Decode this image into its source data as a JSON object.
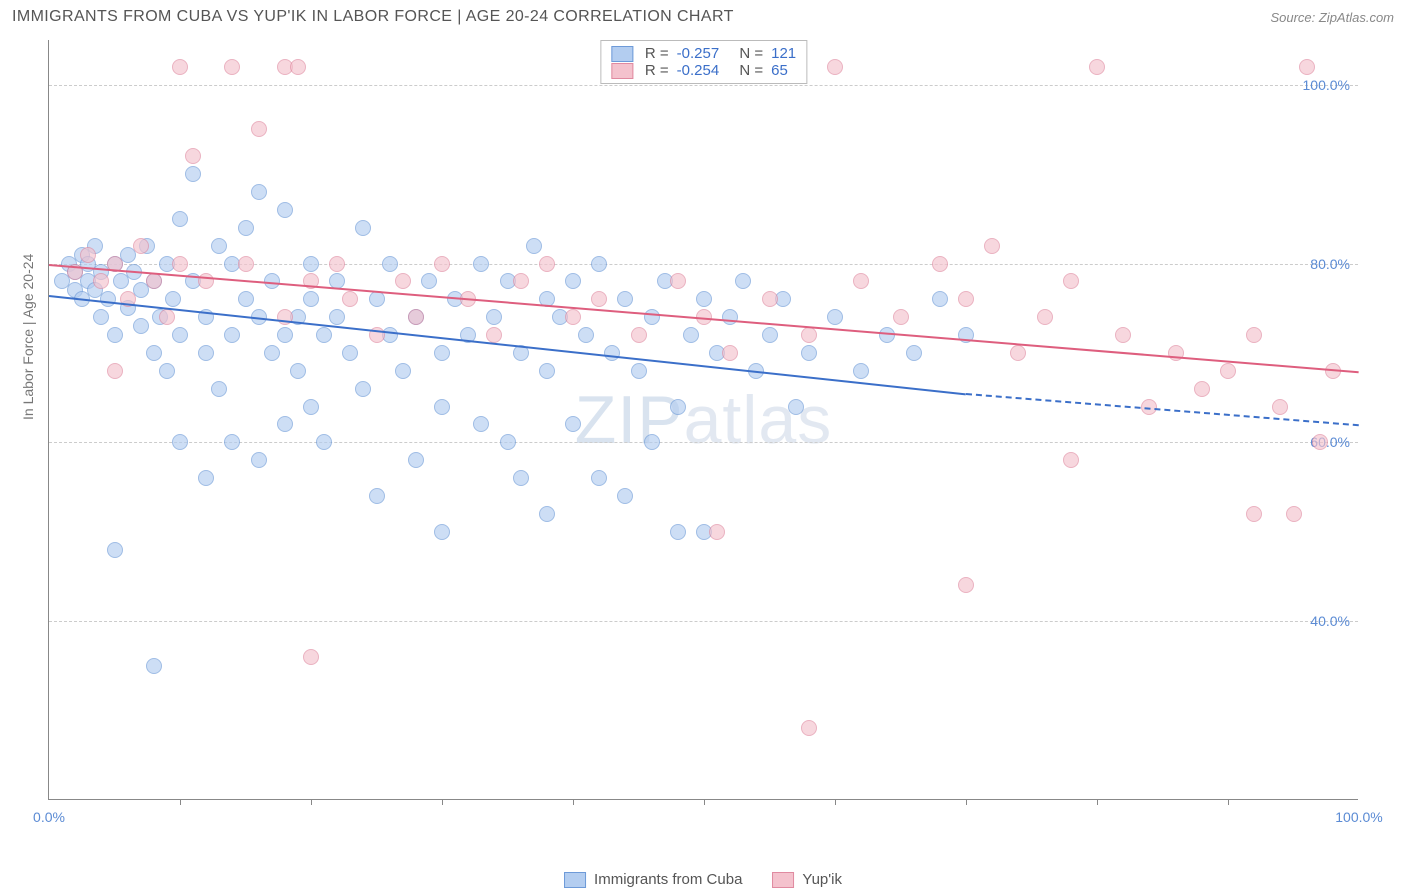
{
  "title": "IMMIGRANTS FROM CUBA VS YUP'IK IN LABOR FORCE | AGE 20-24 CORRELATION CHART",
  "source": "Source: ZipAtlas.com",
  "watermark": {
    "a": "ZIP",
    "b": "atlas"
  },
  "chart": {
    "type": "scatter",
    "ylabel": "In Labor Force | Age 20-24",
    "background_color": "#ffffff",
    "grid_color": "#cccccc",
    "axis_color": "#888888",
    "text_color": "#777777",
    "tick_label_color": "#5b8bd4",
    "point_radius": 8,
    "point_opacity": 0.65,
    "xlim": [
      0,
      100
    ],
    "ylim": [
      20,
      105
    ],
    "yticks": [
      {
        "v": 40,
        "label": "40.0%"
      },
      {
        "v": 60,
        "label": "60.0%"
      },
      {
        "v": 80,
        "label": "80.0%"
      },
      {
        "v": 100,
        "label": "100.0%"
      }
    ],
    "xticks_minor": [
      10,
      20,
      30,
      40,
      50,
      60,
      70,
      80,
      90
    ],
    "xtick_labels": [
      {
        "v": 0,
        "label": "0.0%"
      },
      {
        "v": 100,
        "label": "100.0%"
      }
    ],
    "legend_bottom": [
      {
        "label": "Immigrants from Cuba",
        "fill": "#b3cdf0",
        "stroke": "#6d9ad8"
      },
      {
        "label": "Yup'ik",
        "fill": "#f4c2cd",
        "stroke": "#e08aa0"
      }
    ],
    "legend_top": [
      {
        "fill": "#b3cdf0",
        "stroke": "#6d9ad8",
        "r_label": "R =",
        "r": "-0.257",
        "n_label": "N =",
        "n": "121"
      },
      {
        "fill": "#f4c2cd",
        "stroke": "#e08aa0",
        "r_label": "R =",
        "r": "-0.254",
        "n_label": "N =",
        "n": "65"
      }
    ],
    "series": [
      {
        "name": "Immigrants from Cuba",
        "fill": "#b3cdf0",
        "stroke": "#6d9ad8",
        "trend": {
          "x0": 0,
          "y0": 76.5,
          "x1": 70,
          "y1": 65.5,
          "color": "#3b6fc9",
          "width": 2,
          "dash_extend_to": 100,
          "dash_y": 62
        },
        "points": [
          [
            1,
            78
          ],
          [
            1.5,
            80
          ],
          [
            2,
            77
          ],
          [
            2,
            79
          ],
          [
            2.5,
            76
          ],
          [
            2.5,
            81
          ],
          [
            3,
            78
          ],
          [
            3,
            80
          ],
          [
            3.5,
            77
          ],
          [
            3.5,
            82
          ],
          [
            4,
            79
          ],
          [
            4,
            74
          ],
          [
            4.5,
            76
          ],
          [
            5,
            80
          ],
          [
            5,
            72
          ],
          [
            5.5,
            78
          ],
          [
            6,
            81
          ],
          [
            6,
            75
          ],
          [
            6.5,
            79
          ],
          [
            7,
            77
          ],
          [
            7,
            73
          ],
          [
            7.5,
            82
          ],
          [
            8,
            70
          ],
          [
            8,
            78
          ],
          [
            8.5,
            74
          ],
          [
            9,
            80
          ],
          [
            9,
            68
          ],
          [
            9.5,
            76
          ],
          [
            10,
            72
          ],
          [
            10,
            85
          ],
          [
            11,
            90
          ],
          [
            11,
            78
          ],
          [
            12,
            74
          ],
          [
            12,
            70
          ],
          [
            13,
            82
          ],
          [
            13,
            66
          ],
          [
            14,
            80
          ],
          [
            14,
            72
          ],
          [
            15,
            76
          ],
          [
            15,
            84
          ],
          [
            16,
            88
          ],
          [
            16,
            74
          ],
          [
            17,
            70
          ],
          [
            17,
            78
          ],
          [
            18,
            72
          ],
          [
            18,
            86
          ],
          [
            19,
            74
          ],
          [
            19,
            68
          ],
          [
            20,
            80
          ],
          [
            20,
            76
          ],
          [
            21,
            72
          ],
          [
            21,
            60
          ],
          [
            22,
            78
          ],
          [
            22,
            74
          ],
          [
            23,
            70
          ],
          [
            24,
            84
          ],
          [
            24,
            66
          ],
          [
            25,
            76
          ],
          [
            26,
            72
          ],
          [
            26,
            80
          ],
          [
            27,
            68
          ],
          [
            28,
            74
          ],
          [
            28,
            58
          ],
          [
            29,
            78
          ],
          [
            30,
            70
          ],
          [
            30,
            64
          ],
          [
            31,
            76
          ],
          [
            32,
            72
          ],
          [
            33,
            80
          ],
          [
            33,
            62
          ],
          [
            34,
            74
          ],
          [
            35,
            78
          ],
          [
            36,
            70
          ],
          [
            36,
            56
          ],
          [
            37,
            82
          ],
          [
            38,
            76
          ],
          [
            38,
            68
          ],
          [
            39,
            74
          ],
          [
            40,
            78
          ],
          [
            40,
            62
          ],
          [
            41,
            72
          ],
          [
            42,
            80
          ],
          [
            43,
            70
          ],
          [
            44,
            76
          ],
          [
            44,
            54
          ],
          [
            45,
            68
          ],
          [
            46,
            74
          ],
          [
            47,
            78
          ],
          [
            48,
            64
          ],
          [
            49,
            72
          ],
          [
            50,
            76
          ],
          [
            50,
            50
          ],
          [
            51,
            70
          ],
          [
            52,
            74
          ],
          [
            53,
            78
          ],
          [
            54,
            68
          ],
          [
            55,
            72
          ],
          [
            56,
            76
          ],
          [
            57,
            64
          ],
          [
            58,
            70
          ],
          [
            60,
            74
          ],
          [
            62,
            68
          ],
          [
            64,
            72
          ],
          [
            66,
            70
          ],
          [
            68,
            76
          ],
          [
            70,
            72
          ],
          [
            5,
            48
          ],
          [
            10,
            60
          ],
          [
            8,
            35
          ],
          [
            18,
            62
          ],
          [
            25,
            54
          ],
          [
            30,
            50
          ],
          [
            38,
            52
          ],
          [
            42,
            56
          ],
          [
            35,
            60
          ],
          [
            46,
            60
          ],
          [
            48,
            50
          ],
          [
            12,
            56
          ],
          [
            14,
            60
          ],
          [
            16,
            58
          ],
          [
            20,
            64
          ]
        ]
      },
      {
        "name": "Yup'ik",
        "fill": "#f4c2cd",
        "stroke": "#e08aa0",
        "trend": {
          "x0": 0,
          "y0": 80,
          "x1": 100,
          "y1": 68,
          "color": "#de5e7e",
          "width": 2
        },
        "points": [
          [
            2,
            79
          ],
          [
            3,
            81
          ],
          [
            4,
            78
          ],
          [
            5,
            80
          ],
          [
            5,
            68
          ],
          [
            6,
            76
          ],
          [
            7,
            82
          ],
          [
            8,
            78
          ],
          [
            9,
            74
          ],
          [
            10,
            80
          ],
          [
            10,
            102
          ],
          [
            11,
            92
          ],
          [
            12,
            78
          ],
          [
            14,
            102
          ],
          [
            15,
            80
          ],
          [
            16,
            95
          ],
          [
            18,
            74
          ],
          [
            18,
            102
          ],
          [
            19,
            102
          ],
          [
            20,
            78
          ],
          [
            22,
            80
          ],
          [
            23,
            76
          ],
          [
            25,
            72
          ],
          [
            27,
            78
          ],
          [
            28,
            74
          ],
          [
            30,
            80
          ],
          [
            32,
            76
          ],
          [
            34,
            72
          ],
          [
            36,
            78
          ],
          [
            38,
            80
          ],
          [
            40,
            74
          ],
          [
            42,
            76
          ],
          [
            45,
            72
          ],
          [
            48,
            78
          ],
          [
            50,
            74
          ],
          [
            52,
            70
          ],
          [
            55,
            76
          ],
          [
            58,
            72
          ],
          [
            60,
            102
          ],
          [
            62,
            78
          ],
          [
            65,
            74
          ],
          [
            68,
            80
          ],
          [
            70,
            76
          ],
          [
            72,
            82
          ],
          [
            74,
            70
          ],
          [
            76,
            74
          ],
          [
            78,
            78
          ],
          [
            80,
            102
          ],
          [
            82,
            72
          ],
          [
            84,
            64
          ],
          [
            86,
            70
          ],
          [
            88,
            66
          ],
          [
            90,
            68
          ],
          [
            92,
            72
          ],
          [
            94,
            64
          ],
          [
            95,
            52
          ],
          [
            96,
            102
          ],
          [
            97,
            60
          ],
          [
            98,
            68
          ],
          [
            92,
            52
          ],
          [
            70,
            44
          ],
          [
            78,
            58
          ],
          [
            51,
            50
          ],
          [
            20,
            36
          ],
          [
            58,
            28
          ]
        ]
      }
    ]
  }
}
